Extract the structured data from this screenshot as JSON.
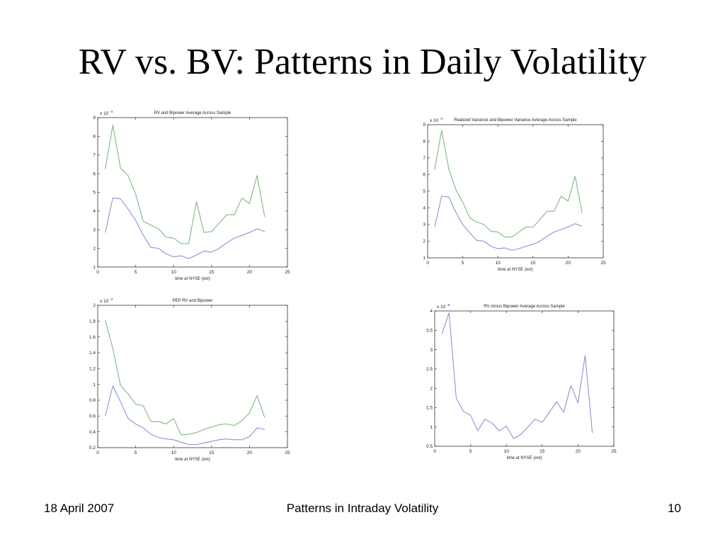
{
  "slide": {
    "title": "RV vs. BV: Patterns in Daily Volatility",
    "footer_date": "18 April 2007",
    "footer_title": "Patterns in Intraday Volatility",
    "page_number": "10"
  },
  "colors": {
    "series_green": "#7dba7d",
    "series_blue": "#8f8fd6",
    "axes": "#333333",
    "background": "#ffffff"
  },
  "chart_data": [
    {
      "type": "line",
      "title": "RV and Bipower Average Across Sample",
      "xlabel": "time at NYSE (est)",
      "ylabel": "",
      "exponent_label": "x 10",
      "exponent_power": "-4",
      "xlim": [
        0,
        25
      ],
      "ylim": [
        1,
        9
      ],
      "xticks": [
        0,
        5,
        10,
        15,
        20,
        25
      ],
      "yticks": [
        1,
        2,
        3,
        4,
        5,
        6,
        7,
        8,
        9
      ],
      "x": [
        1,
        2,
        3,
        4,
        5,
        6,
        7,
        8,
        9,
        10,
        11,
        12,
        13,
        14,
        15,
        16,
        17,
        18,
        19,
        20,
        21,
        22
      ],
      "series": [
        {
          "color": "#7dba7d",
          "values": [
            6.25,
            8.6,
            6.3,
            5.9,
            4.9,
            3.45,
            3.25,
            3.05,
            2.6,
            2.55,
            2.25,
            2.25,
            4.5,
            2.85,
            2.9,
            3.35,
            3.8,
            3.8,
            4.7,
            4.4,
            5.9,
            3.7
          ]
        },
        {
          "color": "#8f8fd6",
          "values": [
            2.85,
            4.7,
            4.65,
            4.1,
            3.5,
            2.7,
            2.05,
            2.0,
            1.7,
            1.55,
            1.6,
            1.45,
            1.65,
            1.85,
            1.8,
            2.0,
            2.3,
            2.55,
            2.7,
            2.85,
            3.05,
            2.9
          ]
        }
      ]
    },
    {
      "type": "line",
      "title": "Realized Variance and Bipower Variance Average Across Sample",
      "xlabel": "time at NYSE (est)",
      "ylabel": "",
      "exponent_label": "x 10",
      "exponent_power": "-4",
      "xlim": [
        0,
        25
      ],
      "ylim": [
        1,
        9
      ],
      "xticks": [
        0,
        5,
        10,
        15,
        20,
        25
      ],
      "yticks": [
        1,
        2,
        3,
        4,
        5,
        6,
        7,
        8,
        9
      ],
      "x": [
        1,
        2,
        3,
        4,
        5,
        6,
        7,
        8,
        9,
        10,
        11,
        12,
        13,
        14,
        15,
        16,
        17,
        18,
        19,
        20,
        21,
        22
      ],
      "series": [
        {
          "color": "#7dba7d",
          "values": [
            6.3,
            8.65,
            6.35,
            5.1,
            4.35,
            3.4,
            3.15,
            3.0,
            2.6,
            2.55,
            2.25,
            2.25,
            2.55,
            2.85,
            2.85,
            3.3,
            3.8,
            3.8,
            4.7,
            4.4,
            5.9,
            3.7
          ]
        },
        {
          "color": "#8f8fd6",
          "values": [
            2.85,
            4.7,
            4.65,
            3.75,
            3.0,
            2.5,
            2.05,
            2.0,
            1.7,
            1.55,
            1.6,
            1.45,
            1.55,
            1.7,
            1.8,
            2.0,
            2.3,
            2.55,
            2.7,
            2.85,
            3.05,
            2.9
          ]
        }
      ]
    },
    {
      "type": "line",
      "title": "PEP RV and Bipower",
      "xlabel": "time at NYSE (est)",
      "ylabel": "",
      "exponent_label": "x 10",
      "exponent_power": "-3",
      "xlim": [
        0,
        25
      ],
      "ylim": [
        0.2,
        2
      ],
      "xticks": [
        0,
        5,
        10,
        15,
        20,
        25
      ],
      "yticks": [
        0.2,
        0.4,
        0.6,
        0.8,
        1,
        1.2,
        1.4,
        1.6,
        1.8,
        2
      ],
      "x": [
        1,
        2,
        3,
        4,
        5,
        6,
        7,
        8,
        9,
        10,
        11,
        12,
        13,
        14,
        15,
        16,
        17,
        18,
        19,
        20,
        21,
        22
      ],
      "series": [
        {
          "color": "#7dba7d",
          "values": [
            1.81,
            1.45,
            0.99,
            0.88,
            0.75,
            0.73,
            0.53,
            0.53,
            0.5,
            0.57,
            0.36,
            0.37,
            0.39,
            0.43,
            0.46,
            0.49,
            0.5,
            0.48,
            0.54,
            0.64,
            0.86,
            0.58
          ]
        },
        {
          "color": "#8f8fd6",
          "values": [
            0.6,
            0.98,
            0.78,
            0.57,
            0.5,
            0.45,
            0.37,
            0.33,
            0.31,
            0.3,
            0.27,
            0.24,
            0.24,
            0.26,
            0.28,
            0.3,
            0.31,
            0.3,
            0.3,
            0.34,
            0.45,
            0.43
          ]
        }
      ]
    },
    {
      "type": "line",
      "title": "RV minus Bipower Average Across Sample",
      "xlabel": "time at NYSE (est)",
      "ylabel": "",
      "exponent_label": "x 10",
      "exponent_power": "-5",
      "xlim": [
        0,
        25
      ],
      "ylim": [
        0.5,
        4
      ],
      "xticks": [
        0,
        5,
        10,
        15,
        20,
        25
      ],
      "yticks": [
        0.5,
        1,
        1.5,
        2,
        2.5,
        3,
        3.5,
        4
      ],
      "x": [
        1,
        2,
        3,
        4,
        5,
        6,
        7,
        8,
        9,
        10,
        11,
        12,
        13,
        14,
        15,
        16,
        17,
        18,
        19,
        20,
        21,
        22
      ],
      "series": [
        {
          "color": "#8f8fd6",
          "values": [
            3.4,
            3.95,
            1.75,
            1.4,
            1.3,
            0.9,
            1.2,
            1.1,
            0.9,
            1.02,
            0.7,
            0.8,
            1.0,
            1.2,
            1.12,
            1.38,
            1.65,
            1.38,
            2.07,
            1.62,
            2.85,
            0.85
          ]
        }
      ]
    }
  ]
}
